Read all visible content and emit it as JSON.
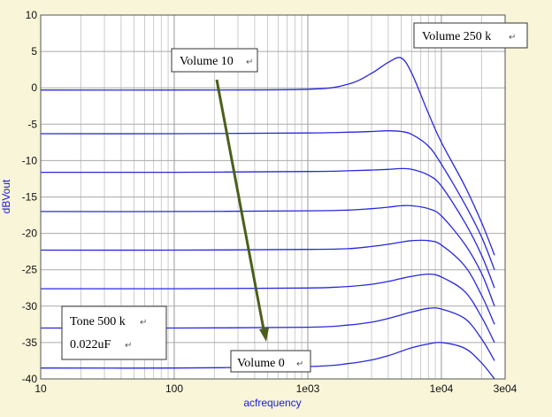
{
  "chart_data": {
    "type": "line",
    "xlabel": "acfrequency",
    "ylabel": "dBVout",
    "x_scale": "log",
    "xlim": [
      10,
      30000
    ],
    "ylim": [
      -40,
      10
    ],
    "grid": true,
    "x_ticks": [
      {
        "value": 10,
        "label": "10"
      },
      {
        "value": 100,
        "label": "100"
      },
      {
        "value": 1000,
        "label": "1e03"
      },
      {
        "value": 10000,
        "label": "1e04"
      },
      {
        "value": 30000,
        "label": "3e04"
      }
    ],
    "y_ticks": [
      {
        "value": 10,
        "label": "10"
      },
      {
        "value": 5,
        "label": "5"
      },
      {
        "value": 0,
        "label": "0"
      },
      {
        "value": -5,
        "label": "-5"
      },
      {
        "value": -10,
        "label": "-10"
      },
      {
        "value": -15,
        "label": "-15"
      },
      {
        "value": -20,
        "label": "-20"
      },
      {
        "value": -25,
        "label": "-25"
      },
      {
        "value": -30,
        "label": "-30"
      },
      {
        "value": -35,
        "label": "-35"
      },
      {
        "value": -40,
        "label": "-40"
      }
    ],
    "x": [
      10,
      100,
      1000,
      2000,
      3000,
      4000,
      5000,
      6000,
      8000,
      10000,
      15000,
      20000,
      25000
    ],
    "series": [
      {
        "values": [
          -0.3,
          -0.3,
          -0.2,
          0.5,
          2.0,
          3.5,
          4.1,
          2.0,
          -3.5,
          -7.5,
          -13.5,
          -18.5,
          -23.0
        ]
      },
      {
        "values": [
          -6.3,
          -6.3,
          -6.2,
          -6.1,
          -6.0,
          -5.9,
          -6.0,
          -6.4,
          -8.0,
          -10.5,
          -16.0,
          -20.5,
          -25.0
        ]
      },
      {
        "values": [
          -11.6,
          -11.6,
          -11.5,
          -11.4,
          -11.3,
          -11.2,
          -11.1,
          -11.2,
          -12.0,
          -13.5,
          -18.5,
          -23.0,
          -27.5
        ]
      },
      {
        "values": [
          -17.0,
          -17.0,
          -16.9,
          -16.8,
          -16.6,
          -16.4,
          -16.2,
          -16.2,
          -16.6,
          -17.6,
          -21.5,
          -25.5,
          -30.0
        ]
      },
      {
        "values": [
          -22.3,
          -22.3,
          -22.2,
          -22.1,
          -21.8,
          -21.5,
          -21.2,
          -21.0,
          -21.0,
          -21.6,
          -24.5,
          -28.5,
          -32.5
        ]
      },
      {
        "values": [
          -27.6,
          -27.6,
          -27.5,
          -27.3,
          -27.0,
          -26.6,
          -26.2,
          -25.9,
          -25.6,
          -26.0,
          -28.0,
          -31.5,
          -35.0
        ]
      },
      {
        "values": [
          -33.0,
          -33.0,
          -32.9,
          -32.6,
          -32.2,
          -31.7,
          -31.2,
          -30.8,
          -30.3,
          -30.4,
          -31.7,
          -34.5,
          -37.5
        ]
      },
      {
        "values": [
          -38.5,
          -38.5,
          -38.3,
          -37.9,
          -37.4,
          -36.8,
          -36.2,
          -35.7,
          -35.2,
          -35.0,
          -35.8,
          -37.8,
          -40.0
        ]
      }
    ],
    "line_color": "#2828e0"
  },
  "annotations": {
    "volume_max": "Volume 10",
    "volume_pot": "Volume 250 k",
    "volume_min": "Volume 0",
    "tone_line1": "Tone 500 k",
    "tone_line2": "0.022uF",
    "return_mark": "↵",
    "arrow_color": "#4b5f1a"
  }
}
